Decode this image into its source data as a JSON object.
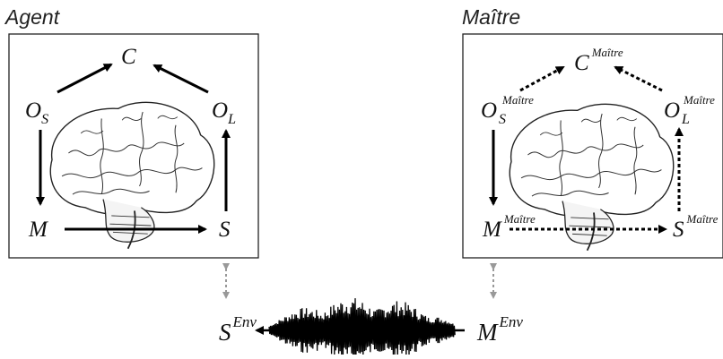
{
  "agent": {
    "title": "Agent",
    "nodes": {
      "c": "C",
      "os_base": "O",
      "os_sub": "S",
      "ol_base": "O",
      "ol_sub": "L",
      "m": "M",
      "s": "S"
    }
  },
  "master": {
    "title": "Maître",
    "nodes": {
      "c_base": "C",
      "c_sup": "Maître",
      "os_base": "O",
      "os_sub": "S",
      "os_sup": "Maître",
      "ol_base": "O",
      "ol_sub": "L",
      "ol_sup": "Maître",
      "m_base": "M",
      "m_sup": "Maître",
      "s_base": "S",
      "s_sup": "Maître"
    }
  },
  "environment": {
    "s_base": "S",
    "s_sup": "Env",
    "m_base": "M",
    "m_sup": "Env"
  }
}
